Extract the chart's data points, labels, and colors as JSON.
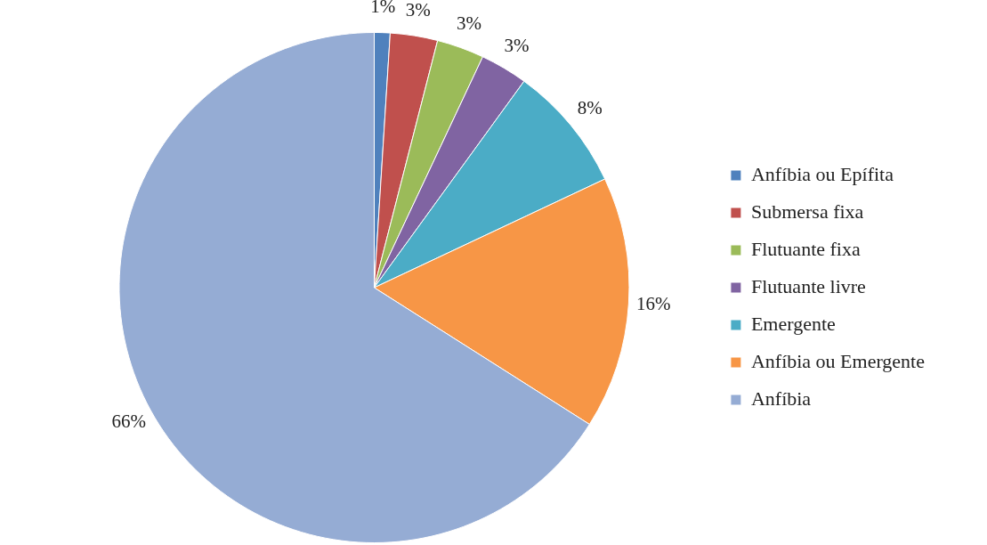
{
  "chart_data": {
    "type": "pie",
    "categories": [
      "Anfíbia ou Epífita",
      "Submersa fixa",
      "Flutuante fixa",
      "Flutuante livre",
      "Emergente",
      "Anfíbia ou Emergente",
      "Anfíbia"
    ],
    "values": [
      1,
      3,
      3,
      3,
      8,
      16,
      66
    ],
    "value_labels": [
      "1%",
      "3%",
      "3%",
      "3%",
      "8%",
      "16%",
      "66%"
    ],
    "colors": [
      "#4f81bd",
      "#c0504d",
      "#9bbb59",
      "#8064a2",
      "#4bacc6",
      "#f79646",
      "#95acd4"
    ],
    "legend": "right"
  }
}
